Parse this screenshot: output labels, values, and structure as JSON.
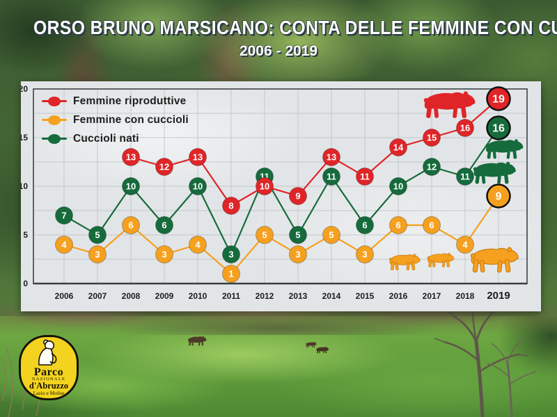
{
  "header": {
    "title": "ORSO BRUNO MARSICANO: CONTA DELLE FEMMINE CON CUCCIOLI",
    "subtitle": "2006 - 2019"
  },
  "chart_data": {
    "type": "line",
    "x": [
      2006,
      2007,
      2008,
      2009,
      2010,
      2011,
      2012,
      2013,
      2014,
      2015,
      2016,
      2017,
      2018,
      2019
    ],
    "series": [
      {
        "name": "Femmine riproduttive",
        "color": "#e02528",
        "values": [
          null,
          null,
          13,
          12,
          13,
          8,
          10,
          9,
          13,
          11,
          14,
          15,
          16,
          19
        ]
      },
      {
        "name": "Femmine con cuccioli",
        "color": "#f6a01f",
        "values": [
          4,
          3,
          6,
          3,
          4,
          1,
          5,
          3,
          5,
          3,
          6,
          6,
          4,
          9
        ]
      },
      {
        "name": "Cuccioli nati",
        "color": "#166b3c",
        "values": [
          7,
          5,
          10,
          6,
          10,
          3,
          11,
          5,
          11,
          6,
          10,
          12,
          11,
          16
        ]
      }
    ],
    "ylim": [
      0,
      20
    ],
    "yticks": [
      0,
      5,
      10,
      15,
      20
    ],
    "minor_grid_step": 2.5,
    "grid": true,
    "legend_position": "top-left",
    "point_labels": "values",
    "last_point_emphasis": true
  },
  "logo": {
    "line1": "Parco",
    "line2": "NAZIONALE",
    "line3": "d'Abruzzo",
    "line4": "Lazio e Molise"
  },
  "icons": {
    "red-bear-icon": "bear-silhouette",
    "green-bear-icon-large": "bear-silhouette",
    "green-bear-icon-cub": "bear-silhouette",
    "orange-bear-cub-icon-1": "bear-silhouette",
    "orange-bear-cub-icon-2": "bear-silhouette",
    "orange-bear-icon-large": "bear-silhouette",
    "park-logo-bear-icon": "sitting-bear-silhouette",
    "meadow-bear-adult-icon": "bear-photo-silhouette",
    "meadow-bear-cub-icon-1": "bear-photo-silhouette",
    "meadow-bear-cub-icon-2": "bear-photo-silhouette"
  },
  "colors": {
    "red": "#e02528",
    "orange": "#f6a01f",
    "green": "#166b3c",
    "panel_background": "#e2e5e7",
    "logo_yellow": "#f3d31f",
    "title_text": "#ffffff",
    "title_shadow": "#2c3a47",
    "axis_text": "#1c1c1c"
  }
}
